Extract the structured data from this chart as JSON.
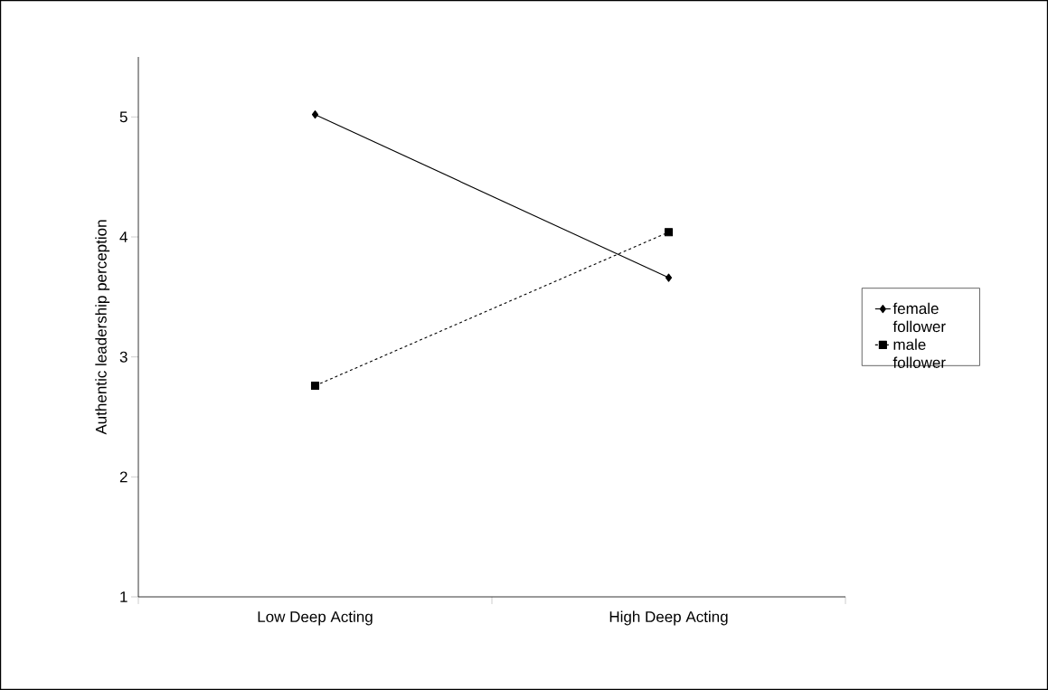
{
  "chart_data": {
    "type": "line",
    "ylabel": "Authentic leadership perception",
    "categories": [
      "Low Deep Acting",
      "High Deep Acting"
    ],
    "series": [
      {
        "name": "female follower",
        "color": "#000000",
        "values": [
          5.02,
          3.66
        ],
        "marker": "diamond",
        "line_style": "solid"
      },
      {
        "name": "male follower",
        "color": "#000000",
        "values": [
          2.76,
          4.04
        ],
        "marker": "square",
        "line_style": "dashed"
      }
    ],
    "ylim": [
      1,
      5.5
    ],
    "yticks": [
      1,
      2,
      3,
      4,
      5
    ],
    "grid": false,
    "legend": "right"
  }
}
